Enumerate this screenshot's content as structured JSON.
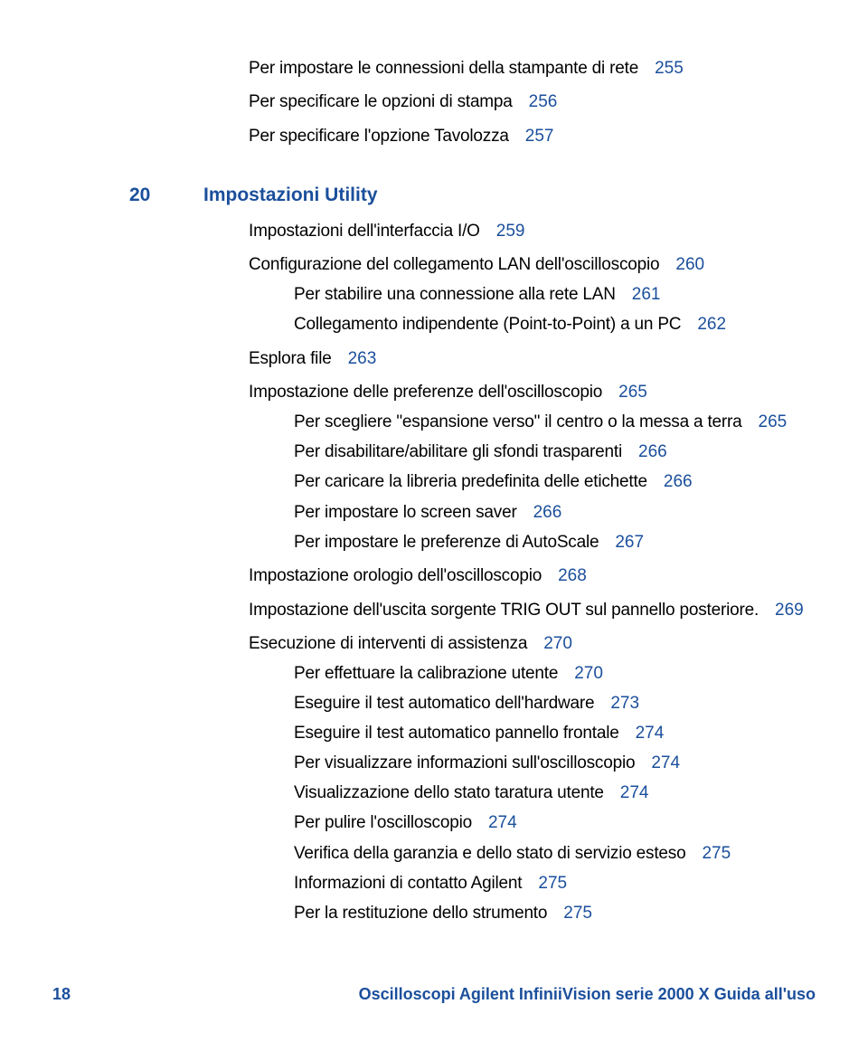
{
  "entries": [
    {
      "level": 1,
      "spacer": 0,
      "text": "Per impostare le connessioni della stampante di rete",
      "page": "255"
    },
    {
      "level": 1,
      "spacer": 1,
      "text": "Per specificare le opzioni di stampa",
      "page": "256"
    },
    {
      "level": 1,
      "spacer": 1,
      "text": "Per specificare l'opzione Tavolozza",
      "page": "257"
    }
  ],
  "chapter": {
    "num": "20",
    "title": "Impostazioni Utility"
  },
  "entries2": [
    {
      "level": 1,
      "spacer": 1,
      "text": "Impostazioni dell'interfaccia I/O",
      "page": "259"
    },
    {
      "level": 1,
      "spacer": 1,
      "text": "Configurazione del collegamento LAN dell'oscilloscopio",
      "page": "260"
    },
    {
      "level": 2,
      "spacer": 0,
      "text": "Per stabilire una connessione alla rete LAN",
      "page": "261"
    },
    {
      "level": 2,
      "spacer": 0,
      "text": "Collegamento indipendente (Point-to-Point) a un PC",
      "page": "262"
    },
    {
      "level": 1,
      "spacer": 1,
      "text": "Esplora file",
      "page": "263"
    },
    {
      "level": 1,
      "spacer": 1,
      "text": "Impostazione delle preferenze dell'oscilloscopio",
      "page": "265"
    },
    {
      "level": 2,
      "spacer": 0,
      "hang": true,
      "text": "Per scegliere \"espansione verso\" il centro o la messa a terra",
      "page": "265"
    },
    {
      "level": 2,
      "spacer": 0,
      "text": "Per disabilitare/abilitare gli sfondi trasparenti",
      "page": "266"
    },
    {
      "level": 2,
      "spacer": 0,
      "text": "Per caricare la libreria predefinita delle etichette",
      "page": "266"
    },
    {
      "level": 2,
      "spacer": 0,
      "text": "Per impostare lo screen saver",
      "page": "266"
    },
    {
      "level": 2,
      "spacer": 0,
      "text": "Per impostare le preferenze di AutoScale",
      "page": "267"
    },
    {
      "level": 1,
      "spacer": 1,
      "text": "Impostazione orologio dell'oscilloscopio",
      "page": "268"
    },
    {
      "level": 1,
      "spacer": 1,
      "hang": true,
      "text": "Impostazione dell'uscita sorgente TRIG OUT  sul pannello posteriore.",
      "page": "269"
    },
    {
      "level": 1,
      "spacer": 1,
      "text": "Esecuzione di interventi di assistenza",
      "page": "270"
    },
    {
      "level": 2,
      "spacer": 0,
      "text": "Per effettuare la calibrazione utente",
      "page": "270"
    },
    {
      "level": 2,
      "spacer": 0,
      "text": "Eseguire il test automatico dell'hardware",
      "page": "273"
    },
    {
      "level": 2,
      "spacer": 0,
      "text": "Eseguire il test automatico pannello frontale",
      "page": "274"
    },
    {
      "level": 2,
      "spacer": 0,
      "text": "Per visualizzare informazioni sull'oscilloscopio",
      "page": "274"
    },
    {
      "level": 2,
      "spacer": 0,
      "text": "Visualizzazione dello stato taratura utente",
      "page": "274"
    },
    {
      "level": 2,
      "spacer": 0,
      "text": "Per pulire l'oscilloscopio",
      "page": "274"
    },
    {
      "level": 2,
      "spacer": 0,
      "text": "Verifica della garanzia e dello stato di servizio esteso",
      "page": "275"
    },
    {
      "level": 2,
      "spacer": 0,
      "text": "Informazioni di contatto Agilent",
      "page": "275"
    },
    {
      "level": 2,
      "spacer": 0,
      "text": "Per la restituzione dello strumento",
      "page": "275"
    }
  ],
  "footer": {
    "page": "18",
    "title": "Oscilloscopi Agilent InfiniiVision serie 2000 X Guida all'uso"
  }
}
